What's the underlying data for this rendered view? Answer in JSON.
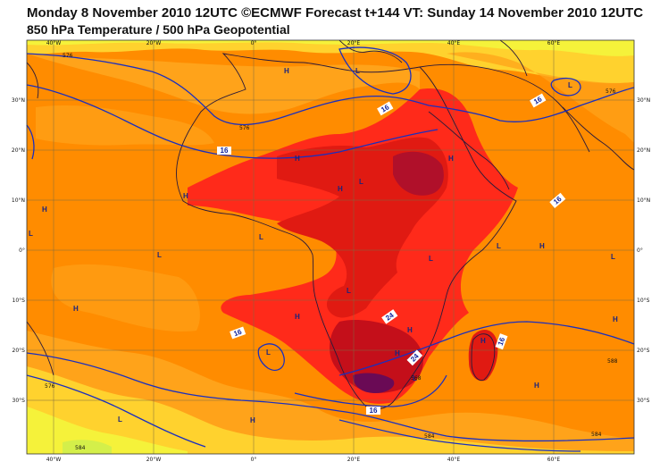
{
  "header": {
    "title_line1": "Monday 8 November 2010 12UTC ©ECMWF Forecast t+144 VT: Sunday 14 November 2010 12UTC",
    "title_line2": "850 hPa Temperature / 500 hPa Geopotential"
  },
  "axes": {
    "lon_labels": [
      "40°W",
      "20°W",
      "0°",
      "20°E",
      "40°E",
      "60°E"
    ],
    "lat_labels": [
      "30°N",
      "20°N",
      "10°N",
      "0°",
      "10°S",
      "20°S",
      "30°S"
    ]
  },
  "colors": {
    "ocean_warm": "#ff8c00",
    "ocean_mild": "#ffa31a",
    "cool_band": "#ffd22e",
    "cold_band": "#f5f23a",
    "hot_land": "#ff2a1a",
    "very_hot": "#d40d10",
    "extreme": "#8a0a40",
    "contour": "#1a2fbf",
    "coast": "#2a1a3a",
    "grid": "#7a6a40"
  },
  "temperature_labels": [
    "16",
    "16",
    "16",
    "16",
    "16",
    "24",
    "24",
    "16",
    "16"
  ],
  "geopotential_labels": [
    "576",
    "576",
    "576",
    "576",
    "584",
    "568",
    "584",
    "584",
    "588"
  ],
  "pressure_markers": {
    "H": [
      "H",
      "H",
      "H",
      "H",
      "H",
      "H",
      "H",
      "H",
      "H",
      "H",
      "H",
      "H",
      "H",
      "H",
      "H"
    ],
    "L": [
      "L",
      "L",
      "L",
      "L",
      "L",
      "L",
      "L",
      "L",
      "L",
      "L",
      "L",
      "L",
      "L"
    ]
  }
}
